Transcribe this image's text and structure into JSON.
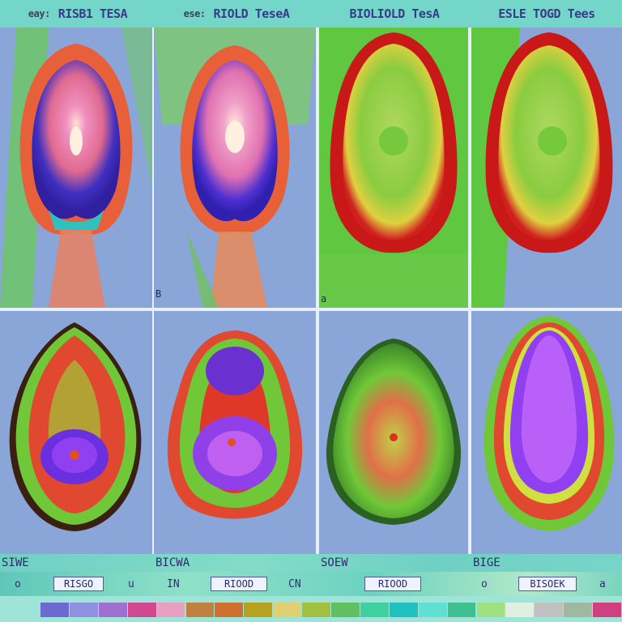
{
  "header": {
    "cells": [
      {
        "prefix": "eay:",
        "text": "RISB1 TESA"
      },
      {
        "prefix": "ese:",
        "text": "RIOLD TeseA"
      },
      {
        "prefix": "",
        "text": "BIOLIOLD TesA"
      },
      {
        "prefix": "",
        "text": "ESLE TOGD Tees"
      }
    ]
  },
  "panels": [
    {
      "corner_label": ""
    },
    {
      "corner_label": "B"
    },
    {
      "corner_label": "a"
    },
    {
      "corner_label": ""
    }
  ],
  "captions": [
    "SIWE",
    "BICWA",
    "SOEW",
    "BIGE"
  ],
  "controls": {
    "labels": [
      "o",
      "u",
      "IN",
      "CN",
      "o",
      "a"
    ],
    "buttons": [
      "RISGO",
      "RIOOD",
      "RIOOD",
      "BISOEK"
    ]
  },
  "colors": {
    "background": "#7fa0d0",
    "header": "#74d6c8",
    "scale": [
      "#6a6ad0",
      "#9090e0",
      "#a070d0",
      "#d04890",
      "#e8a0c0",
      "#c08040",
      "#d07030",
      "#b8a020",
      "#e0d070",
      "#a0c040",
      "#60c060",
      "#40d0a0",
      "#20c0c0",
      "#60e0d0",
      "#40c090",
      "#a0e080",
      "#e0f0e0",
      "#c0c0c0",
      "#a0b8a0",
      "#d04080"
    ]
  }
}
